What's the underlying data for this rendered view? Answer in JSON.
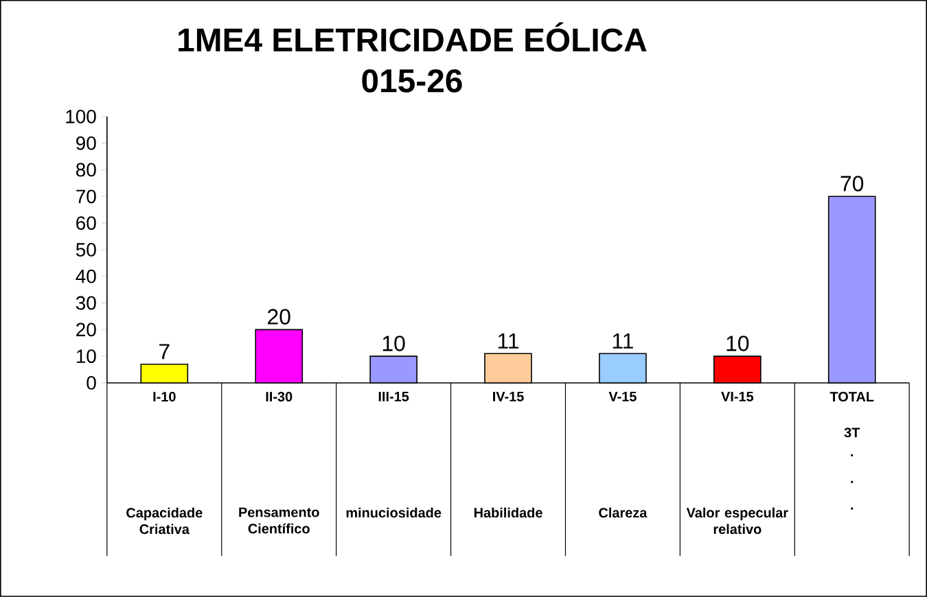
{
  "chart_data": {
    "type": "bar",
    "title": "1ME4 ELETRICIDADE EÓLICA",
    "subtitle": "015-26",
    "categories": [
      "I-10",
      "II-30",
      "III-15",
      "IV-15",
      "V-15",
      "VI-15",
      "TOTAL"
    ],
    "values": [
      7,
      20,
      10,
      11,
      11,
      10,
      70
    ],
    "colors": [
      "#ffff00",
      "#ff00ff",
      "#9999ff",
      "#ffcc99",
      "#99ccff",
      "#ff0000",
      "#9999ff"
    ],
    "ylim": [
      0,
      100
    ],
    "yticks": [
      0,
      10,
      20,
      30,
      40,
      50,
      60,
      70,
      80,
      90,
      100
    ],
    "data_labels": true,
    "annotations": [
      "Capacidade Criativa",
      "Pensamento Científico",
      "minuciosidade",
      "Habilidade",
      "Clareza",
      "Valor especular relativo",
      "3T",
      ".",
      ".",
      "."
    ]
  }
}
